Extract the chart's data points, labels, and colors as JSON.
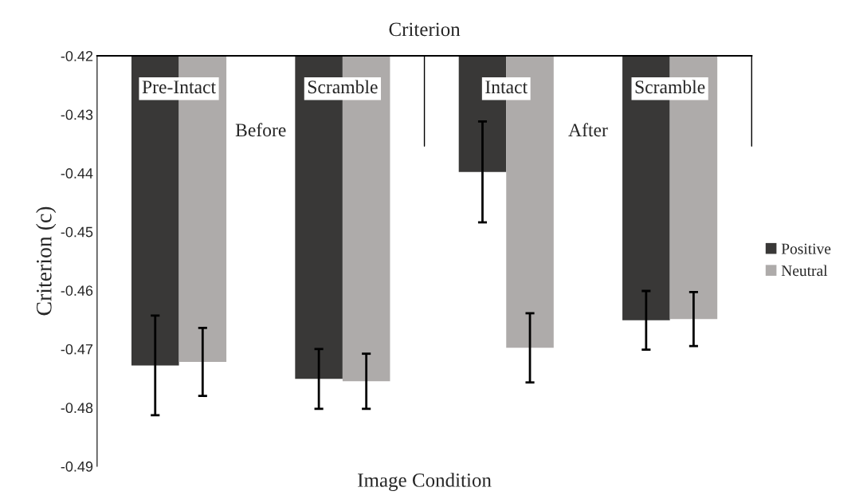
{
  "chart_data": {
    "type": "bar",
    "title": "Criterion",
    "xlabel": "Image Condition",
    "ylabel": "Criterion (c)",
    "categories": [
      "Pre-Intact",
      "Scramble",
      "Intact",
      "Scramble"
    ],
    "annotations": [
      "Before",
      "After"
    ],
    "series": [
      {
        "name": "Positive",
        "color": "#393837",
        "values": [
          -0.4728,
          -0.4751,
          -0.4398,
          -0.4651
        ],
        "errors": [
          0.0085,
          0.0051,
          0.0086,
          0.005
        ]
      },
      {
        "name": "Neutral",
        "color": "#aeabaa",
        "values": [
          -0.4722,
          -0.4755,
          -0.4698,
          -0.4649
        ],
        "errors": [
          0.0058,
          0.0047,
          0.0059,
          0.0046
        ]
      }
    ],
    "ylim": [
      -0.49,
      -0.42
    ],
    "yticks": [
      -0.49,
      -0.48,
      -0.47,
      -0.46,
      -0.45,
      -0.44,
      -0.43,
      -0.42
    ],
    "grid": false,
    "legend": "right"
  }
}
